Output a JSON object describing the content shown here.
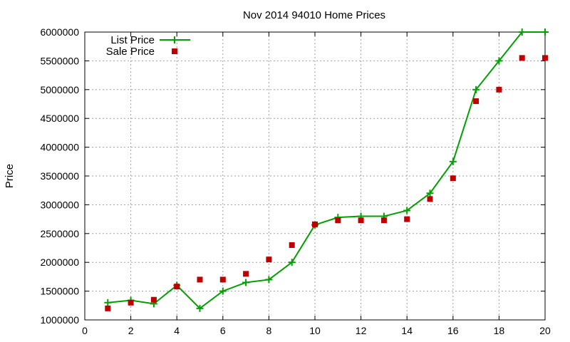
{
  "chart_data": {
    "type": "line",
    "title": "Nov 2014 94010 Home Prices",
    "xlabel": "",
    "ylabel": "Price",
    "xlim": [
      0,
      20
    ],
    "ylim": [
      1000000,
      6000000
    ],
    "x_ticks": [
      "0",
      "2",
      "4",
      "6",
      "8",
      "10",
      "12",
      "14",
      "16",
      "18",
      "20"
    ],
    "y_ticks": [
      "1000000",
      "1500000",
      "2000000",
      "2500000",
      "3000000",
      "3500000",
      "4000000",
      "4500000",
      "5000000",
      "5500000",
      "6000000"
    ],
    "grid": true,
    "legend_position": "top-left",
    "series": [
      {
        "name": "List Price",
        "style": "line-with-points",
        "marker": "plus",
        "color": "#00a000",
        "x": [
          1,
          2,
          3,
          4,
          5,
          6,
          7,
          8,
          9,
          10,
          11,
          12,
          13,
          14,
          15,
          16,
          17,
          18,
          19,
          20
        ],
        "y": [
          1300000,
          1340000,
          1280000,
          1600000,
          1200000,
          1500000,
          1650000,
          1700000,
          2000000,
          2650000,
          2780000,
          2800000,
          2800000,
          2900000,
          3200000,
          3750000,
          5000000,
          5500000,
          6000000,
          6000000
        ]
      },
      {
        "name": "Sale Price",
        "style": "points",
        "marker": "square",
        "color": "#c00000",
        "x": [
          1,
          2,
          3,
          4,
          5,
          6,
          7,
          8,
          9,
          10,
          11,
          12,
          13,
          14,
          15,
          16,
          17,
          18,
          19,
          20
        ],
        "y": [
          1200000,
          1300000,
          1350000,
          1580000,
          1700000,
          1700000,
          1800000,
          2050000,
          2300000,
          2660000,
          2730000,
          2730000,
          2730000,
          2750000,
          3100000,
          3460000,
          4800000,
          5000000,
          5550000,
          5550000
        ]
      }
    ]
  }
}
